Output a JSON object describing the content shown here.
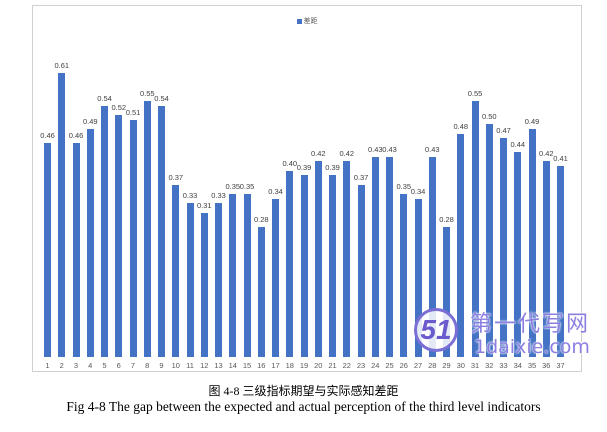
{
  "chart_data": {
    "type": "bar",
    "title": "",
    "legend": [
      "差距"
    ],
    "legend_position": "top",
    "xlabel": "",
    "ylabel": "",
    "grid": false,
    "ylim": [
      0,
      0.65
    ],
    "categories": [
      "1",
      "2",
      "3",
      "4",
      "5",
      "6",
      "7",
      "8",
      "9",
      "10",
      "11",
      "12",
      "13",
      "14",
      "15",
      "16",
      "17",
      "18",
      "19",
      "20",
      "21",
      "22",
      "23",
      "24",
      "25",
      "26",
      "27",
      "28",
      "29",
      "30",
      "31",
      "32",
      "33",
      "34",
      "35",
      "36",
      "37"
    ],
    "series": [
      {
        "name": "差距",
        "color": "#4472c4",
        "values": [
          0.46,
          0.61,
          0.46,
          0.49,
          0.54,
          0.52,
          0.51,
          0.55,
          0.54,
          0.37,
          0.33,
          0.31,
          0.33,
          0.35,
          0.35,
          0.28,
          0.34,
          0.4,
          0.39,
          0.42,
          0.39,
          0.42,
          0.37,
          0.43,
          0.43,
          0.35,
          0.34,
          0.43,
          0.28,
          0.48,
          0.55,
          0.5,
          0.47,
          0.44,
          0.49,
          0.42,
          0.41
        ],
        "labels": [
          "0.46",
          "0.61",
          "0.46",
          "0.49",
          "0.54",
          "0.52",
          "0.51",
          "0.55",
          "0.54",
          "0.37",
          "0.33",
          "0.31",
          "0.33",
          "0.35",
          "0.35",
          "0.28",
          "0.34",
          "0.40",
          "0.39",
          "0.42",
          "0.39",
          "0.42",
          "0.37",
          "0.43",
          "0.43",
          "0.35",
          "0.34",
          "0.43",
          "0.28",
          "0.48",
          "0.55",
          "0.50",
          "0.47",
          "0.44",
          "0.49",
          "0.42",
          "0.41"
        ]
      }
    ]
  },
  "legend": {
    "label": "差距",
    "color": "#4472c4"
  },
  "caption": {
    "chinese": "图 4-8 三级指标期望与实际感知差距",
    "english": "Fig 4-8 The gap between the expected and actual perception of the third level indicators"
  },
  "watermark": {
    "logo": "51",
    "chinese": "第一代写网",
    "domain": "1daixie.com"
  }
}
